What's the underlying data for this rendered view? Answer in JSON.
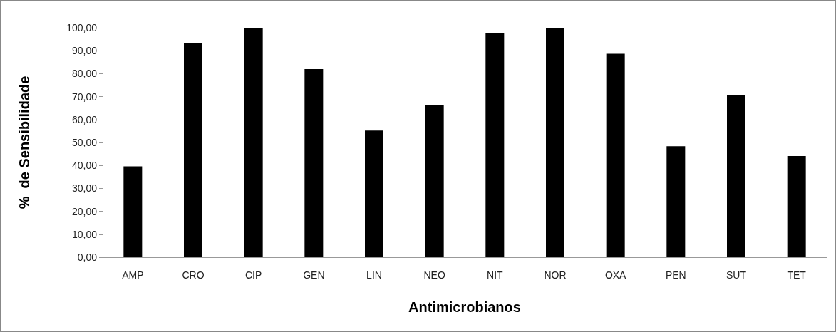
{
  "chart_data": {
    "type": "bar",
    "xlabel": "Antimicrobianos",
    "ylabel": "%  de Sensibilidade",
    "categories": [
      "AMP",
      "CRO",
      "CIP",
      "GEN",
      "LIN",
      "NEO",
      "NIT",
      "NOR",
      "OXA",
      "PEN",
      "SUT",
      "TET"
    ],
    "values": [
      39.6,
      93.2,
      100,
      82.0,
      55.2,
      66.4,
      97.5,
      100,
      88.7,
      48.4,
      70.7,
      44.1
    ],
    "color": "#000000",
    "ylim": [
      0,
      100
    ],
    "yticks": [
      {
        "value": 0,
        "label": "0,00"
      },
      {
        "value": 10,
        "label": "10,00"
      },
      {
        "value": 20,
        "label": "20,00"
      },
      {
        "value": 30,
        "label": "30,00"
      },
      {
        "value": 40,
        "label": "40,00"
      },
      {
        "value": 50,
        "label": "50,00"
      },
      {
        "value": 60,
        "label": "60,00"
      },
      {
        "value": 70,
        "label": "70,00"
      },
      {
        "value": 80,
        "label": "80,00"
      },
      {
        "value": 90,
        "label": "90,00"
      },
      {
        "value": 100,
        "label": "100,00"
      }
    ],
    "grid": false
  }
}
